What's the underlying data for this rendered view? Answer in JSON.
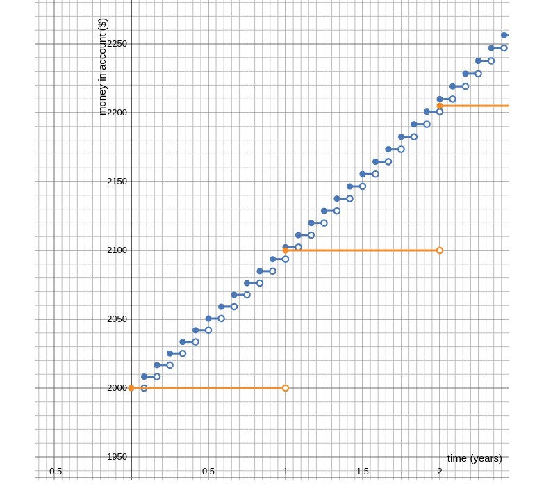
{
  "chart_data": {
    "type": "line",
    "title": "",
    "xlabel": "time (years)",
    "ylabel": "money in account ($)",
    "xlim": [
      -0.6,
      2.45
    ],
    "ylim": [
      1935,
      2280
    ],
    "x_ticks": [
      "-0.5",
      "0.5",
      "1",
      "1.5",
      "2"
    ],
    "y_ticks": [
      "1950",
      "2000",
      "2050",
      "2100",
      "2150",
      "2200",
      "2250"
    ],
    "grid": true,
    "colors": {
      "monthly": "#4c78b5",
      "annual": "#f28e2b"
    },
    "series": [
      {
        "style": "step",
        "step_width": 0.0833333,
        "points": [
          [
            0.0,
            2000.0
          ],
          [
            0.0833,
            2008.33
          ],
          [
            0.1667,
            2016.7
          ],
          [
            0.25,
            2025.1
          ],
          [
            0.3333,
            2033.54
          ],
          [
            0.4167,
            2042.02
          ],
          [
            0.5,
            2050.52
          ],
          [
            0.5833,
            2059.07
          ],
          [
            0.6667,
            2067.65
          ],
          [
            0.75,
            2076.26
          ],
          [
            0.8333,
            2084.91
          ],
          [
            0.9167,
            2093.6
          ],
          [
            1.0,
            2102.32
          ],
          [
            1.0833,
            2111.08
          ],
          [
            1.1667,
            2119.88
          ],
          [
            1.25,
            2128.71
          ],
          [
            1.3333,
            2137.58
          ],
          [
            1.4167,
            2146.49
          ],
          [
            1.5,
            2155.43
          ],
          [
            1.5833,
            2164.41
          ],
          [
            1.6667,
            2173.43
          ],
          [
            1.75,
            2182.48
          ],
          [
            1.8333,
            2191.58
          ],
          [
            1.9167,
            2200.71
          ],
          [
            2.0,
            2209.88
          ],
          [
            2.0833,
            2219.09
          ],
          [
            2.1667,
            2228.33
          ],
          [
            2.25,
            2237.62
          ],
          [
            2.3333,
            2246.94
          ],
          [
            2.4167,
            2256.3
          ]
        ]
      },
      {
        "style": "step",
        "step_width": 1,
        "points": [
          [
            0,
            2000
          ],
          [
            1,
            2100
          ],
          [
            2,
            2205
          ]
        ]
      }
    ]
  }
}
